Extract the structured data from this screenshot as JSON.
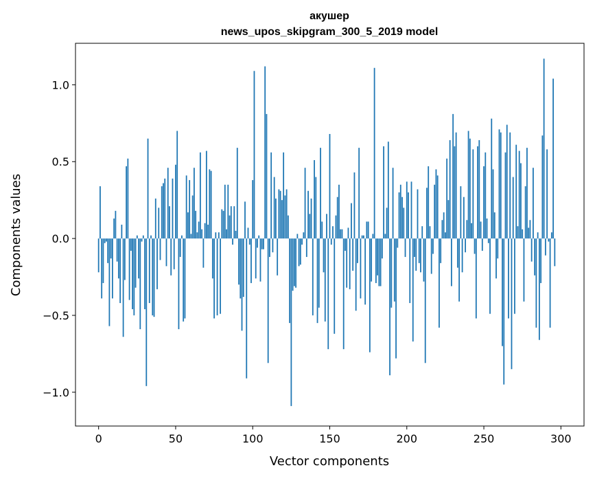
{
  "chart_data": {
    "type": "bar",
    "title": "акушер",
    "subtitle": "news_upos_skipgram_300_5_2019 model",
    "xlabel": "Vector components",
    "ylabel": "Components values",
    "xlim": [
      -15,
      315
    ],
    "ylim": [
      -1.22,
      1.27
    ],
    "xticks": [
      0,
      50,
      100,
      150,
      200,
      250,
      300
    ],
    "xtick_labels": [
      "0",
      "50",
      "100",
      "150",
      "200",
      "250",
      "300"
    ],
    "yticks": [
      -1.0,
      -0.5,
      0.0,
      0.5,
      1.0
    ],
    "ytick_labels": [
      "−1.0",
      "−0.5",
      "0.0",
      "0.5",
      "1.0"
    ],
    "grid": false,
    "bar_color": "#1f77b4",
    "x_start": 0,
    "values": [
      -0.22,
      0.34,
      -0.39,
      -0.29,
      -0.03,
      -0.02,
      -0.16,
      -0.57,
      -0.13,
      -0.39,
      0.13,
      0.18,
      -0.15,
      -0.26,
      -0.42,
      0.09,
      -0.64,
      -0.27,
      0.47,
      0.52,
      -0.4,
      -0.08,
      -0.46,
      -0.5,
      -0.32,
      0.02,
      -0.26,
      -0.59,
      -0.02,
      0.02,
      -0.46,
      -0.96,
      0.65,
      -0.42,
      0.02,
      -0.5,
      -0.51,
      0.26,
      -0.33,
      0.2,
      -0.14,
      0.34,
      0.36,
      0.39,
      -0.18,
      0.46,
      0.21,
      -0.24,
      0.39,
      -0.2,
      0.48,
      0.7,
      -0.59,
      -0.12,
      0.02,
      -0.54,
      -0.52,
      0.41,
      0.17,
      0.38,
      0.03,
      0.28,
      0.46,
      0.18,
      0.04,
      0.11,
      0.56,
      0.06,
      -0.19,
      0.1,
      0.57,
      0.09,
      0.45,
      0.44,
      -0.26,
      -0.52,
      0.04,
      -0.5,
      0.04,
      -0.49,
      0.19,
      0.18,
      0.35,
      0.06,
      0.35,
      0.15,
      0.21,
      -0.04,
      0.21,
      0.05,
      0.59,
      -0.3,
      -0.39,
      -0.6,
      -0.38,
      0.24,
      -0.91,
      0.07,
      -0.04,
      -0.29,
      0.38,
      1.09,
      -0.26,
      -0.06,
      0.02,
      -0.28,
      -0.07,
      -0.07,
      1.12,
      0.81,
      -0.81,
      -0.12,
      0.56,
      -0.09,
      0.4,
      0.26,
      -0.24,
      0.32,
      0.31,
      0.25,
      0.56,
      0.28,
      0.32,
      0.15,
      -0.55,
      -1.09,
      -0.34,
      -0.31,
      -0.32,
      0.03,
      -0.18,
      -0.17,
      -0.04,
      0.04,
      0.46,
      -0.12,
      0.31,
      0.16,
      0.26,
      -0.5,
      0.51,
      0.4,
      -0.55,
      -0.45,
      0.59,
      0.11,
      -0.22,
      -0.54,
      0.16,
      -0.72,
      0.68,
      -0.04,
      0.08,
      -0.62,
      0.15,
      0.27,
      0.35,
      0.06,
      0.06,
      -0.72,
      -0.08,
      -0.32,
      0.07,
      -0.33,
      0.23,
      -0.21,
      0.43,
      -0.47,
      -0.16,
      0.59,
      -0.39,
      0.02,
      0.02,
      -0.43,
      0.11,
      0.11,
      -0.74,
      -0.28,
      0.03,
      1.11,
      -0.29,
      -0.24,
      -0.31,
      -0.31,
      -0.13,
      0.6,
      0.03,
      0.2,
      0.63,
      -0.89,
      -0.45,
      0.46,
      -0.41,
      -0.78,
      -0.06,
      0.3,
      0.35,
      0.27,
      0.2,
      -0.12,
      0.37,
      0.3,
      -0.42,
      0.37,
      -0.67,
      -0.12,
      -0.21,
      0.32,
      -0.16,
      -0.22,
      0.08,
      -0.28,
      -0.81,
      0.33,
      0.47,
      0.08,
      -0.23,
      -0.1,
      0.35,
      0.45,
      0.41,
      -0.58,
      -0.16,
      0.12,
      0.17,
      0.04,
      0.52,
      0.25,
      0.64,
      -0.31,
      0.81,
      0.6,
      0.69,
      -0.19,
      -0.41,
      0.34,
      -0.22,
      0.27,
      -0.09,
      0.12,
      0.7,
      0.65,
      0.1,
      0.58,
      -0.1,
      -0.52,
      0.6,
      0.64,
      0.11,
      -0.08,
      0.47,
      0.56,
      0.13,
      -0.03,
      -0.49,
      0.78,
      0.45,
      0.17,
      -0.26,
      -0.13,
      0.71,
      0.69,
      -0.7,
      -0.95,
      0.56,
      0.74,
      -0.52,
      0.69,
      -0.85,
      0.4,
      -0.49,
      0.61,
      0.08,
      0.57,
      0.49,
      0.06,
      -0.41,
      0.34,
      0.59,
      0.07,
      0.12,
      -0.15,
      0.46,
      -0.24,
      -0.58,
      0.04,
      -0.66,
      -0.29,
      0.67,
      1.17,
      -0.11,
      0.58,
      -0.02,
      -0.58,
      0.04,
      1.04,
      -0.18
    ]
  }
}
